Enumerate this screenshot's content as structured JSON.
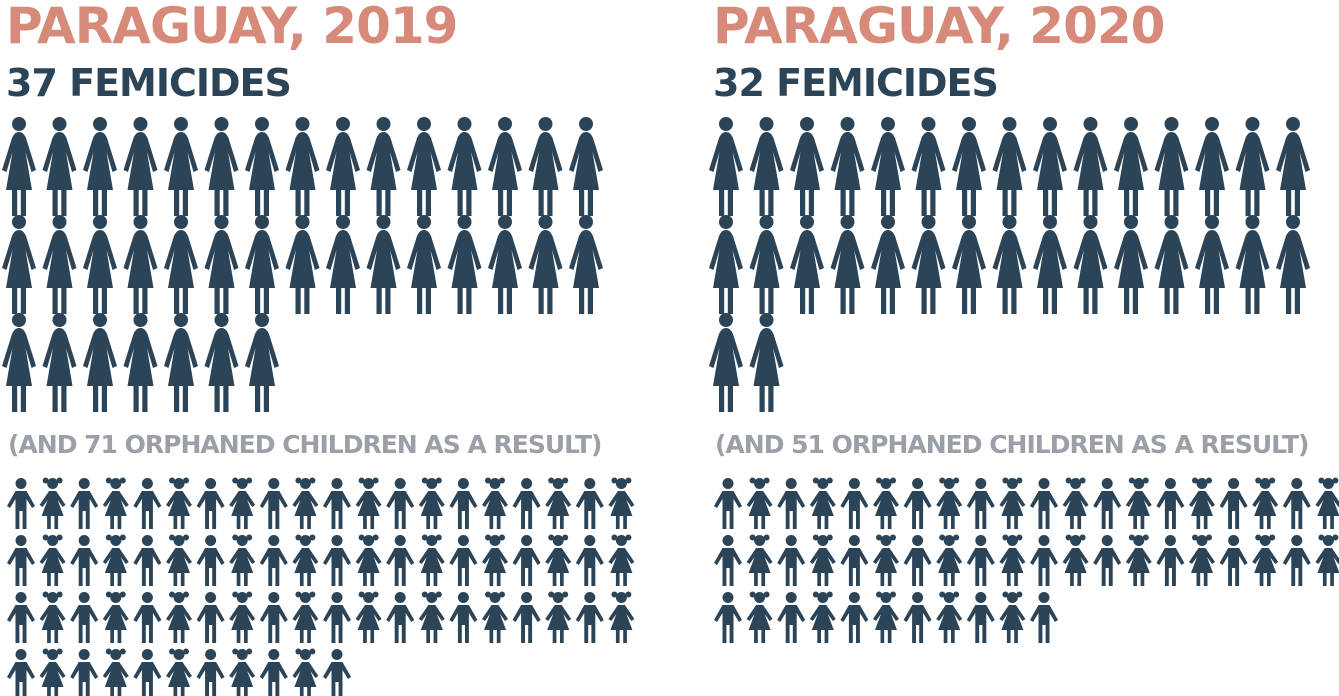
{
  "colors": {
    "title": "#d88a7a",
    "figure": "#2c4457",
    "note": "#9b9fa7"
  },
  "icons": {
    "woman": "woman-icon",
    "child_boy": "boy-icon",
    "child_girl": "girl-icon"
  },
  "chart_data": [
    {
      "type": "pictogram",
      "title": "PARAGUAY, 2019",
      "subtitle": "37 FEMICIDES",
      "femicides": 37,
      "note": "(AND 71 ORPHANED CHILDREN AS A RESULT)",
      "orphaned_children": 71
    },
    {
      "type": "pictogram",
      "title": "PARAGUAY, 2020",
      "subtitle": "32 FEMICIDES",
      "femicides": 32,
      "note": "(AND 51 ORPHANED CHILDREN AS A RESULT)",
      "orphaned_children": 51
    }
  ]
}
